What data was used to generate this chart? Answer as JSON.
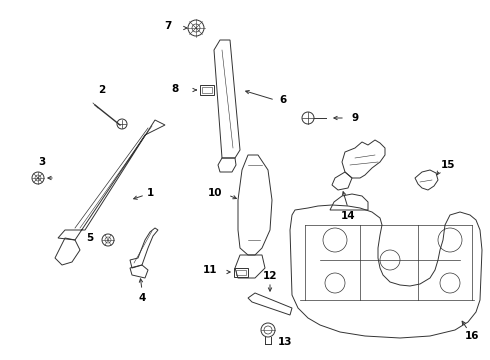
{
  "bg_color": "#ffffff",
  "line_color": "#333333",
  "lw": 0.7,
  "fig_w": 4.9,
  "fig_h": 3.6,
  "dpi": 100
}
